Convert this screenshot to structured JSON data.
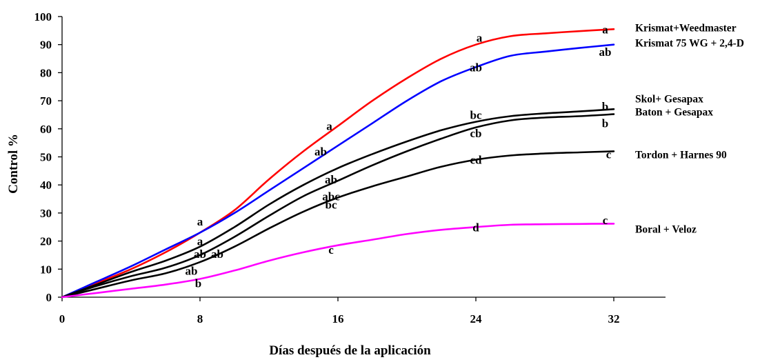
{
  "chart_data": {
    "type": "line",
    "title": "",
    "xlabel": "Días después de la aplicación",
    "ylabel": "Control %",
    "xlim": [
      0,
      35
    ],
    "ylim": [
      0,
      100
    ],
    "xticks": [
      0,
      8,
      16,
      24,
      32
    ],
    "yticks": [
      0,
      10,
      20,
      30,
      40,
      50,
      60,
      70,
      80,
      90,
      100
    ],
    "grid": false,
    "legend": "inline labels at right end of lines",
    "series": [
      {
        "name": "Krismat+Weedmaster",
        "color": "#ff0000",
        "x": [
          0,
          2,
          4,
          6,
          8,
          10,
          12,
          14,
          16,
          18,
          20,
          22,
          24,
          26,
          28,
          30,
          32
        ],
        "y": [
          0,
          5,
          10,
          16,
          23,
          31,
          42,
          52,
          61,
          70,
          78,
          85,
          90,
          93,
          94,
          94.8,
          95.5
        ],
        "point_labels": [
          {
            "x": 8,
            "y": 27,
            "text": "a"
          },
          {
            "x": 15.5,
            "y": 61,
            "text": "a"
          },
          {
            "x": 24.2,
            "y": 92.5,
            "text": "a"
          },
          {
            "x": 31.5,
            "y": 95.5,
            "text": "a"
          }
        ]
      },
      {
        "name": "Krismat 75 WG + 2,4-D",
        "color": "#0000ff",
        "x": [
          0,
          2,
          4,
          6,
          8,
          10,
          12,
          14,
          16,
          18,
          20,
          22,
          24,
          26,
          28,
          30,
          32
        ],
        "y": [
          0,
          5.5,
          11,
          17,
          23,
          30,
          38,
          46,
          54,
          62,
          70,
          77,
          82,
          86,
          87.5,
          88.8,
          90
        ],
        "point_labels": [
          {
            "x": 15,
            "y": 52,
            "text": "ab"
          },
          {
            "x": 24,
            "y": 82,
            "text": "ab"
          },
          {
            "x": 31.5,
            "y": 87.5,
            "text": "ab"
          }
        ]
      },
      {
        "name": "Skol+ Gesapax",
        "color": "#000000",
        "x": [
          0,
          2,
          4,
          6,
          8,
          10,
          12,
          14,
          16,
          18,
          20,
          22,
          24,
          26,
          28,
          30,
          32
        ],
        "y": [
          0,
          4.5,
          9,
          13,
          18,
          25,
          33,
          40,
          46,
          51,
          55.5,
          59.5,
          62.5,
          64.5,
          65.5,
          66.2,
          67
        ],
        "point_labels": [
          {
            "x": 8,
            "y": 20,
            "text": "a"
          },
          {
            "x": 15.6,
            "y": 42,
            "text": "ab"
          },
          {
            "x": 24,
            "y": 65,
            "text": "bc"
          },
          {
            "x": 31.5,
            "y": 68,
            "text": "b"
          }
        ]
      },
      {
        "name": "Baton + Gesapax",
        "color": "#000000",
        "x": [
          0,
          2,
          4,
          6,
          8,
          10,
          12,
          14,
          16,
          18,
          20,
          22,
          24,
          26,
          28,
          30,
          32
        ],
        "y": [
          0,
          4,
          7.5,
          10.5,
          15,
          21.5,
          29,
          36,
          41.5,
          47,
          52,
          56.5,
          60.5,
          63,
          64,
          64.5,
          65.2
        ],
        "point_labels": [
          {
            "x": 8,
            "y": 15.5,
            "text": "ab"
          },
          {
            "x": 9,
            "y": 15.5,
            "text": "ab"
          },
          {
            "x": 15.6,
            "y": 36,
            "text": "abc"
          },
          {
            "x": 24,
            "y": 58.5,
            "text": "cb"
          },
          {
            "x": 31.5,
            "y": 62,
            "text": "b"
          }
        ]
      },
      {
        "name": "Tordon + Harnes 90",
        "color": "#000000",
        "x": [
          0,
          2,
          4,
          6,
          8,
          10,
          12,
          14,
          16,
          18,
          20,
          22,
          24,
          26,
          28,
          30,
          32
        ],
        "y": [
          0,
          3,
          6,
          8.5,
          12.5,
          18,
          24.5,
          30.5,
          35.5,
          39.5,
          43,
          46.5,
          49,
          50.5,
          51.2,
          51.6,
          52
        ],
        "point_labels": [
          {
            "x": 7.5,
            "y": 9.5,
            "text": "ab"
          },
          {
            "x": 15.6,
            "y": 33,
            "text": "bc"
          },
          {
            "x": 24,
            "y": 49,
            "text": "cd"
          },
          {
            "x": 31.7,
            "y": 51,
            "text": "c"
          }
        ]
      },
      {
        "name": "Boral + Veloz",
        "color": "#ff00ff",
        "x": [
          0,
          2,
          4,
          6,
          8,
          10,
          12,
          14,
          16,
          18,
          20,
          22,
          24,
          26,
          28,
          30,
          32
        ],
        "y": [
          0,
          1.5,
          3,
          4.5,
          6.5,
          9.5,
          13,
          16,
          18.5,
          20.5,
          22.5,
          24,
          25,
          25.8,
          26,
          26.1,
          26.2
        ],
        "point_labels": [
          {
            "x": 7.9,
            "y": 5,
            "text": "b"
          },
          {
            "x": 15.6,
            "y": 17,
            "text": "c"
          },
          {
            "x": 24,
            "y": 25,
            "text": "d"
          },
          {
            "x": 31.5,
            "y": 27.5,
            "text": "c"
          }
        ]
      }
    ]
  }
}
